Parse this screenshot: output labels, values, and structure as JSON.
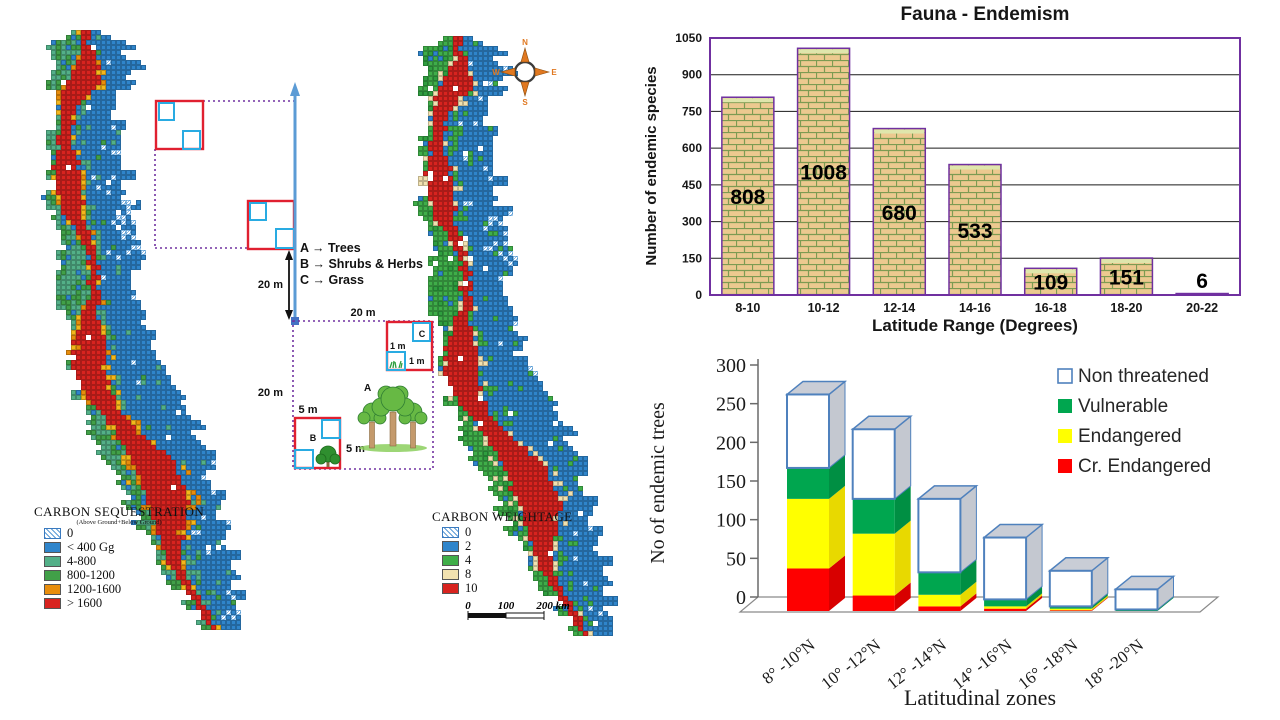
{
  "chart_data": [
    {
      "type": "bar",
      "title": "Fauna - Endemism",
      "categories": [
        "8-10",
        "10-12",
        "12-14",
        "14-16",
        "16-18",
        "18-20",
        "20-22"
      ],
      "values": [
        808,
        1008,
        680,
        533,
        109,
        151,
        6
      ],
      "xlabel": "Latitude Range (Degrees)",
      "ylabel": "Number of endemic species",
      "ylim": [
        0,
        1050
      ],
      "ytick_step": 150,
      "grid": true,
      "bar_style": "brick",
      "colors": {
        "brick_fill": "#ecc98f",
        "brick_mortar": "#7d9b52",
        "border": "#7030a0",
        "cap": "#dfe6ac",
        "gridline": "#1a1a1a"
      }
    },
    {
      "type": "stacked-bar-3d",
      "categories": [
        "8° -10°N",
        "10° -12°N",
        "12° -14°N",
        "14° -16°N",
        "16° -18°N",
        "18° -20°N"
      ],
      "series": [
        {
          "name": "Cr. Endangered",
          "color": "#fe0000",
          "side": "#d80000",
          "values": [
            55,
            20,
            6,
            3,
            1,
            0
          ]
        },
        {
          "name": "Endangered",
          "color": "#ffff00",
          "side": "#e8d900",
          "values": [
            90,
            80,
            15,
            3,
            2,
            0
          ]
        },
        {
          "name": "Vulnerable",
          "color": "#00a64f",
          "side": "#008f43",
          "values": [
            40,
            45,
            29,
            9,
            3,
            2
          ]
        },
        {
          "name": "Non threatened",
          "color": "#ffffff",
          "side": "#c4c8d0",
          "values": [
            95,
            90,
            95,
            80,
            46,
            26
          ]
        }
      ],
      "legend_order": [
        "Non threatened",
        "Vulnerable",
        "Endangered",
        "Cr. Endangered"
      ],
      "xlabel": "Latitudinal zones",
      "ylabel": "No of endemic trees",
      "ylim": [
        0,
        300
      ],
      "ytick_step": 50,
      "colors": {
        "frame_blue": "#4f81bd",
        "top_face": "#c9cdd6",
        "axis": "#6a6a6a",
        "text": "#262626"
      }
    }
  ],
  "map_legends": {
    "sequestration": {
      "title": "CARBON SEQUESTRATION",
      "subtitle": "(Above Ground+Below Ground)",
      "items": [
        {
          "label": "0",
          "color": "hatch"
        },
        {
          "label": "< 400 Gg",
          "color": "#2f85cb"
        },
        {
          "label": "4-800",
          "color": "#53b088"
        },
        {
          "label": "800-1200",
          "color": "#41a048"
        },
        {
          "label": "1200-1600",
          "color": "#e88d0c"
        },
        {
          "label": "> 1600",
          "color": "#d8231f"
        }
      ]
    },
    "weightage": {
      "title": "CARBON WEIGHTAGE",
      "items": [
        {
          "label": "0",
          "color": "hatch"
        },
        {
          "label": "2",
          "color": "#2f85cb"
        },
        {
          "label": "4",
          "color": "#3fae49"
        },
        {
          "label": "8",
          "color": "#f2e2b0"
        },
        {
          "label": "10",
          "color": "#d8231f"
        }
      ],
      "scalebar": [
        "0",
        "100",
        "200 km"
      ]
    }
  },
  "sampling_diagram": {
    "legend_lines": [
      "A → Trees",
      "B → Shrubs & Herbs",
      "C → Grass"
    ],
    "plot_labels": {
      "a": "A",
      "b": "B",
      "c": "C"
    },
    "measurements": {
      "twenty": "20 m",
      "five": "5 m",
      "one": "1 m"
    }
  },
  "compass": {
    "n": "N",
    "e": "E",
    "s": "S",
    "w": "W"
  }
}
